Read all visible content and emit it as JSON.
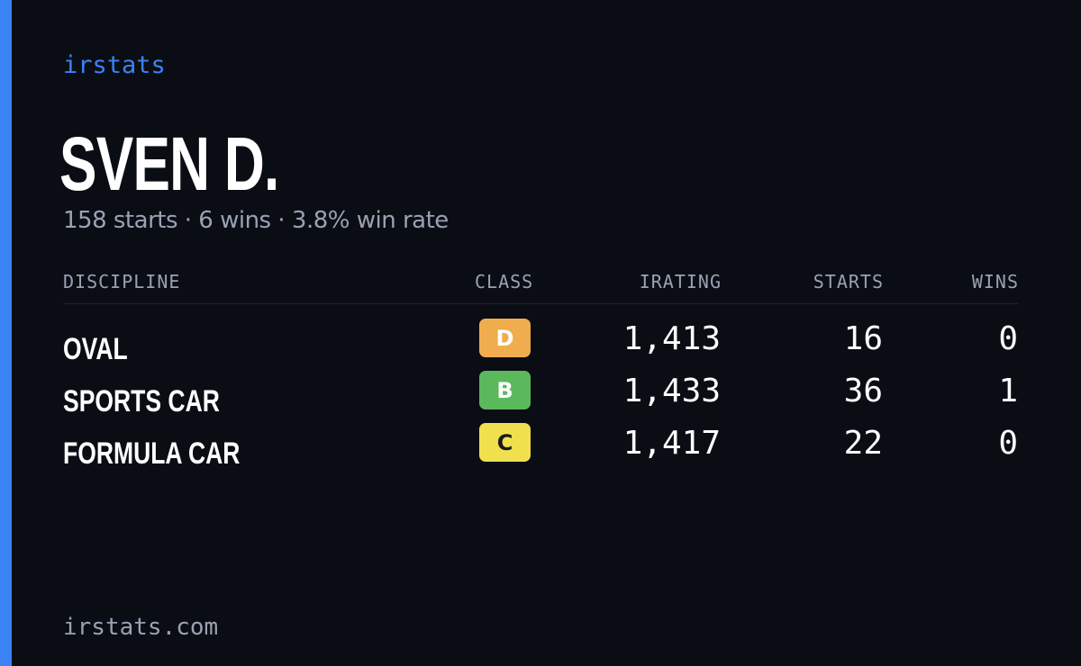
{
  "brand": "irstats",
  "driver": {
    "name": "SVEN D.",
    "summary": "158 starts · 6 wins · 3.8% win rate"
  },
  "table": {
    "headers": {
      "discipline": "DISCIPLINE",
      "class": "CLASS",
      "irating": "IRATING",
      "starts": "STARTS",
      "wins": "WINS"
    },
    "rows": [
      {
        "discipline": "OVAL",
        "class": "D",
        "class_color": "#f0ad4e",
        "class_text_color": "#ffffff",
        "irating": "1,413",
        "starts": "16",
        "wins": "0"
      },
      {
        "discipline": "SPORTS CAR",
        "class": "B",
        "class_color": "#5cb85c",
        "class_text_color": "#ffffff",
        "irating": "1,433",
        "starts": "36",
        "wins": "1"
      },
      {
        "discipline": "FORMULA CAR",
        "class": "C",
        "class_color": "#f0e04e",
        "class_text_color": "#1a1a1a",
        "irating": "1,417",
        "starts": "22",
        "wins": "0"
      }
    ]
  },
  "footer": "irstats.com",
  "colors": {
    "accent": "#3b82f6",
    "background": "#0a0d14",
    "muted": "#98a2b3"
  }
}
